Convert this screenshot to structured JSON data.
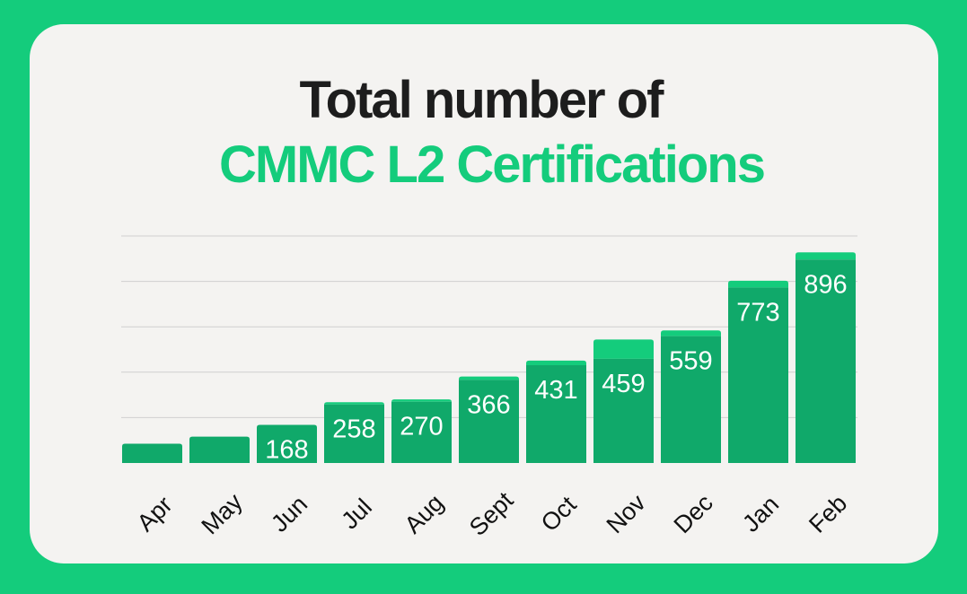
{
  "title": {
    "line1": "Total number of",
    "line2": "CMMC L2 Certifications"
  },
  "colors": {
    "background": "#14cc7c",
    "card": "#f4f3f1",
    "title_dark": "#1d1d1d",
    "title_accent": "#14cc7c",
    "bar": "#10a96a",
    "bar_top": "#14cc7c",
    "grid": "#cfcfcf",
    "label": "#ffffff",
    "axis_text": "#111111"
  },
  "chart_data": {
    "type": "bar",
    "title": "Total number of CMMC L2 Certifications",
    "categories": [
      "Apr",
      "May",
      "Jun",
      "Jul",
      "Aug",
      "Sept",
      "Oct",
      "Nov",
      "Dec",
      "Jan",
      "Feb"
    ],
    "values": [
      85,
      116,
      168,
      258,
      270,
      366,
      431,
      459,
      559,
      773,
      896
    ],
    "labels": [
      "",
      "",
      "168",
      "258",
      "270",
      "366",
      "431",
      "459",
      "559",
      "773",
      "896"
    ],
    "top_increment": [
      0,
      0,
      0,
      10,
      10,
      15,
      20,
      85,
      25,
      30,
      32
    ],
    "ylim": [
      0,
      1000
    ],
    "grid": true,
    "xlabel": "",
    "ylabel": ""
  }
}
